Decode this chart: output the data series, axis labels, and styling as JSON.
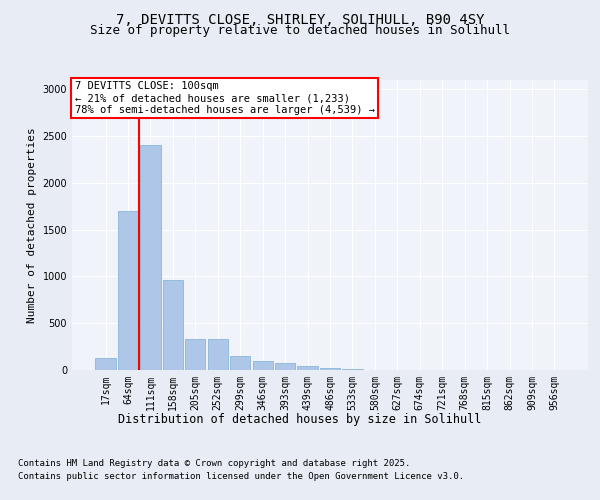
{
  "title_line1": "7, DEVITTS CLOSE, SHIRLEY, SOLIHULL, B90 4SY",
  "title_line2": "Size of property relative to detached houses in Solihull",
  "xlabel": "Distribution of detached houses by size in Solihull",
  "ylabel": "Number of detached properties",
  "categories": [
    "17sqm",
    "64sqm",
    "111sqm",
    "158sqm",
    "205sqm",
    "252sqm",
    "299sqm",
    "346sqm",
    "393sqm",
    "439sqm",
    "486sqm",
    "533sqm",
    "580sqm",
    "627sqm",
    "674sqm",
    "721sqm",
    "768sqm",
    "815sqm",
    "862sqm",
    "909sqm",
    "956sqm"
  ],
  "values": [
    130,
    1700,
    2400,
    960,
    330,
    330,
    155,
    100,
    75,
    40,
    20,
    10,
    5,
    0,
    0,
    0,
    0,
    0,
    0,
    0,
    0
  ],
  "bar_color": "#aec6e8",
  "bar_edge_color": "#7bafd4",
  "vline_color": "red",
  "vline_index": 1.5,
  "annotation_box_text": "7 DEVITTS CLOSE: 100sqm\n← 21% of detached houses are smaller (1,233)\n78% of semi-detached houses are larger (4,539) →",
  "annotation_box_color": "red",
  "ylim": [
    0,
    3100
  ],
  "yticks": [
    0,
    500,
    1000,
    1500,
    2000,
    2500,
    3000
  ],
  "footer_line1": "Contains HM Land Registry data © Crown copyright and database right 2025.",
  "footer_line2": "Contains public sector information licensed under the Open Government Licence v3.0.",
  "bg_color": "#e8edf5",
  "plot_bg_color": "#f0f4fa",
  "grid_color": "#ffffff",
  "title_fontsize": 10,
  "subtitle_fontsize": 9,
  "axis_label_fontsize": 8.5,
  "tick_fontsize": 7,
  "annotation_fontsize": 7.5,
  "footer_fontsize": 6.5,
  "ylabel_fontsize": 8
}
